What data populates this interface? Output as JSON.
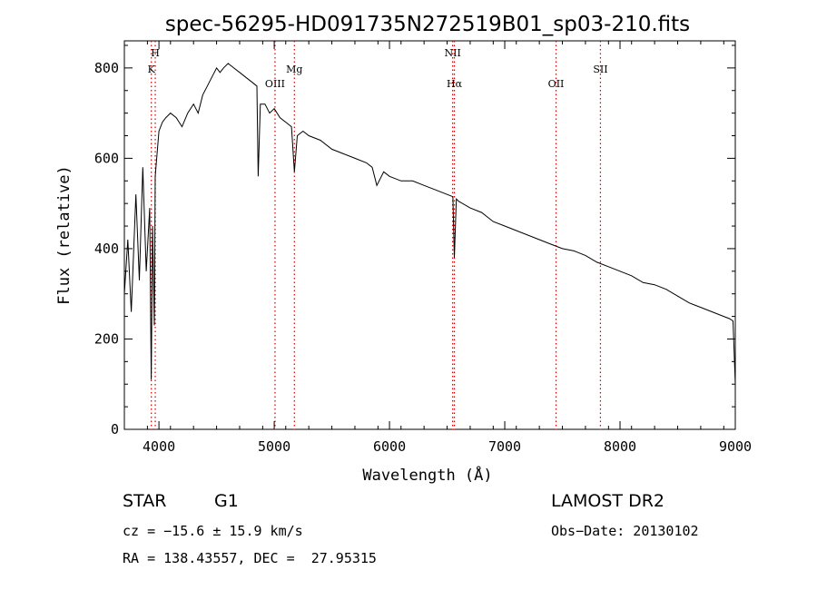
{
  "chart_data": {
    "type": "line",
    "title": "spec-56295-HD091735N272519B01_sp03-210.fits",
    "xlabel": "Wavelength (Å)",
    "ylabel": "Flux (relative)",
    "xlim": [
      3700,
      9000
    ],
    "ylim": [
      0,
      860
    ],
    "x_ticks": [
      "4000",
      "5000",
      "6000",
      "7000",
      "8000",
      "9000"
    ],
    "y_ticks": [
      "0",
      "200",
      "400",
      "600",
      "800"
    ],
    "grid": false,
    "series": [
      {
        "x": [
          3700,
          3730,
          3760,
          3800,
          3830,
          3860,
          3890,
          3920,
          3933,
          3945,
          3960,
          3968,
          3980,
          4000,
          4030,
          4060,
          4100,
          4150,
          4200,
          4250,
          4300,
          4340,
          4380,
          4420,
          4460,
          4500,
          4530,
          4560,
          4600,
          4650,
          4700,
          4750,
          4800,
          4850,
          4861,
          4880,
          4920,
          4960,
          5000,
          5050,
          5100,
          5150,
          5175,
          5200,
          5250,
          5300,
          5400,
          5500,
          5600,
          5700,
          5800,
          5850,
          5890,
          5950,
          6000,
          6100,
          6200,
          6300,
          6400,
          6500,
          6550,
          6563,
          6580,
          6600,
          6700,
          6800,
          6900,
          7000,
          7100,
          7200,
          7300,
          7400,
          7500,
          7600,
          7700,
          7800,
          7900,
          8000,
          8100,
          8200,
          8300,
          8400,
          8500,
          8600,
          8700,
          8800,
          8900,
          8950,
          8980,
          9000
        ],
        "y": [
          300,
          420,
          260,
          520,
          330,
          580,
          350,
          490,
          110,
          450,
          230,
          560,
          600,
          660,
          680,
          690,
          700,
          690,
          670,
          700,
          720,
          700,
          740,
          760,
          780,
          800,
          790,
          800,
          810,
          800,
          790,
          780,
          770,
          760,
          560,
          720,
          720,
          700,
          710,
          690,
          680,
          670,
          570,
          650,
          660,
          650,
          640,
          620,
          610,
          600,
          590,
          580,
          540,
          570,
          560,
          550,
          550,
          540,
          530,
          520,
          515,
          380,
          510,
          505,
          490,
          480,
          460,
          450,
          440,
          430,
          420,
          410,
          400,
          395,
          385,
          370,
          360,
          350,
          340,
          325,
          320,
          310,
          295,
          280,
          270,
          260,
          250,
          245,
          240,
          100
        ]
      }
    ],
    "line_markers": [
      {
        "label": "K",
        "x": 3934,
        "row": 2
      },
      {
        "label": "H",
        "x": 3968,
        "row": 1
      },
      {
        "label": "OIII",
        "x": 5007,
        "row": 3
      },
      {
        "label": "Mg",
        "x": 5175,
        "row": 2
      },
      {
        "label": "NII",
        "x": 6548,
        "row": 1
      },
      {
        "label": "Hα",
        "x": 6563,
        "row": 3
      },
      {
        "label": "OII",
        "x": 7445,
        "row": 3
      },
      {
        "label": "SII",
        "x": 7830,
        "row": 2
      }
    ]
  },
  "info": {
    "class_label": "STAR",
    "subclass": "G1",
    "survey": "LAMOST DR2",
    "cz": "cz = −15.6 ± 15.9 km/s",
    "obs_date": "Obs−Date: 20130102",
    "coords": "RA = 138.43557, DEC =  27.95315"
  },
  "colors": {
    "line": "#000000",
    "marker": "#cc0000",
    "background": "#ffffff"
  }
}
